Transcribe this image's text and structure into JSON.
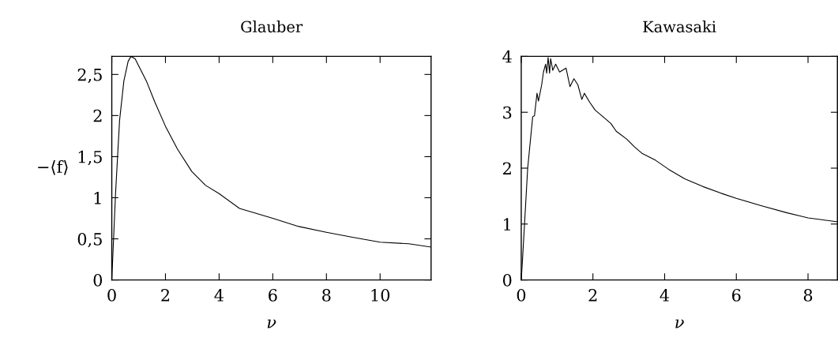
{
  "chart_data": [
    {
      "type": "line",
      "title": "Glauber",
      "xlabel": "ν",
      "ylabel": "−⟨f⟩",
      "xlim": [
        0,
        11.9
      ],
      "ylim": [
        0,
        2.72
      ],
      "xticks": [
        0,
        2,
        4,
        6,
        8,
        10
      ],
      "yticks": [
        0,
        {
          "value": 0.5,
          "label": "0,5"
        },
        1,
        {
          "value": 1.5,
          "label": "1,5"
        },
        2,
        {
          "value": 2.5,
          "label": "2,5"
        }
      ],
      "grid": false,
      "legend": false,
      "series": [
        {
          "color": "#000000",
          "x": [
            0,
            0.14,
            0.29,
            0.45,
            0.61,
            0.72,
            0.87,
            1.29,
            1.61,
            2.0,
            2.45,
            2.98,
            3.5,
            4.0,
            4.76,
            6.0,
            6.97,
            8.0,
            8.97,
            10.0,
            11.07,
            11.9
          ],
          "values": [
            0,
            1.05,
            1.94,
            2.42,
            2.66,
            2.72,
            2.69,
            2.42,
            2.16,
            1.87,
            1.59,
            1.32,
            1.15,
            1.05,
            0.87,
            0.75,
            0.65,
            0.58,
            0.52,
            0.46,
            0.44,
            0.4
          ]
        }
      ]
    },
    {
      "type": "line",
      "title": "Kawasaki",
      "xlabel": "ν",
      "xlim": [
        0,
        8.82
      ],
      "ylim": [
        0,
        4
      ],
      "xticks": [
        0,
        2,
        4,
        6,
        8
      ],
      "yticks": [
        0,
        1,
        2,
        3,
        4
      ],
      "grid": false,
      "legend": false,
      "series": [
        {
          "color": "#000000",
          "x": [
            0,
            0.03,
            0.18,
            0.32,
            0.37,
            0.44,
            0.48,
            0.57,
            0.62,
            0.68,
            0.71,
            0.75,
            0.79,
            0.82,
            0.88,
            0.96,
            1.07,
            1.25,
            1.36,
            1.47,
            1.58,
            1.69,
            1.76,
            1.91,
            2.06,
            2.28,
            2.5,
            2.65,
            2.94,
            3.16,
            3.38,
            3.75,
            4.11,
            4.56,
            5.07,
            5.58,
            6.0,
            6.69,
            7.42,
            8.0,
            8.82
          ],
          "values": [
            0,
            0.3,
            2.0,
            2.92,
            2.94,
            3.34,
            3.2,
            3.49,
            3.72,
            3.86,
            3.7,
            3.98,
            3.7,
            3.96,
            3.75,
            3.86,
            3.72,
            3.79,
            3.46,
            3.6,
            3.49,
            3.23,
            3.34,
            3.18,
            3.04,
            2.92,
            2.8,
            2.66,
            2.52,
            2.38,
            2.26,
            2.14,
            1.98,
            1.81,
            1.67,
            1.55,
            1.46,
            1.33,
            1.2,
            1.11,
            1.04
          ]
        }
      ]
    }
  ]
}
